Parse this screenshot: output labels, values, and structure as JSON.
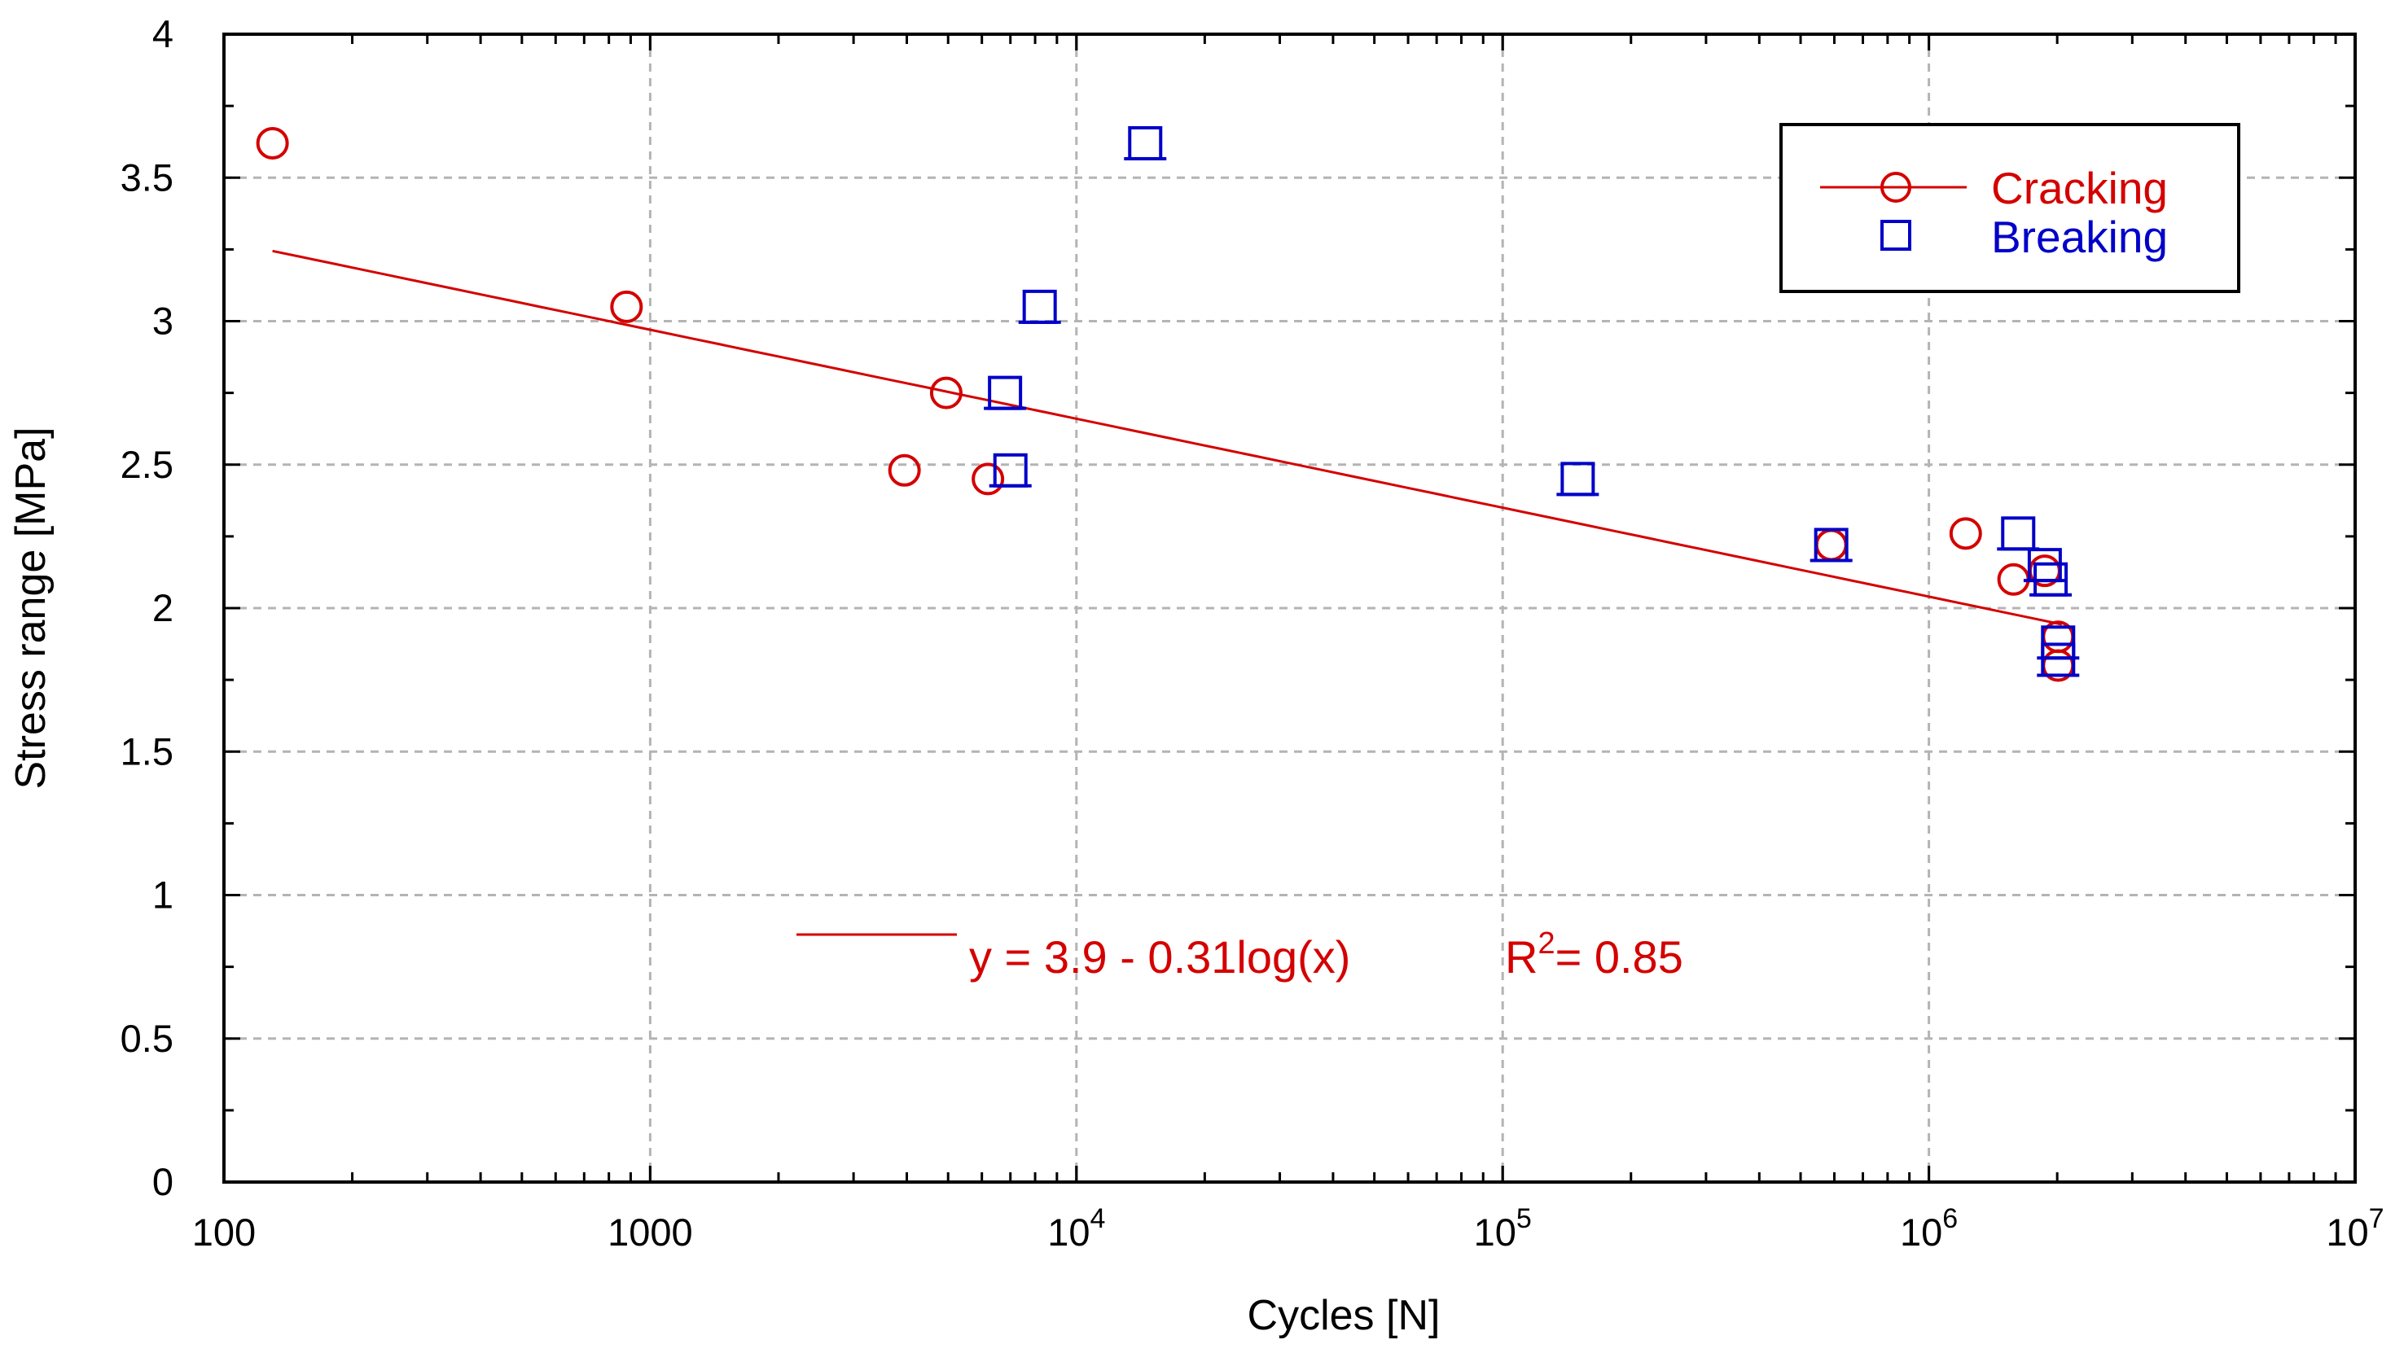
{
  "chart_data": {
    "type": "scatter",
    "title": "",
    "xlabel": "Cycles [N]",
    "ylabel": "Stress range [MPa]",
    "xscale": "log",
    "xlim": [
      100,
      10000000
    ],
    "ylim": [
      0,
      4
    ],
    "grid": true,
    "x_tick_labels": [
      {
        "value": 100,
        "base": "100",
        "exp": ""
      },
      {
        "value": 1000,
        "base": "1000",
        "exp": ""
      },
      {
        "value": 10000,
        "base": "10",
        "exp": "4"
      },
      {
        "value": 100000,
        "base": "10",
        "exp": "5"
      },
      {
        "value": 1000000,
        "base": "10",
        "exp": "6"
      },
      {
        "value": 10000000,
        "base": "10",
        "exp": "7"
      }
    ],
    "y_ticks": [
      0,
      0.5,
      1,
      1.5,
      2,
      2.5,
      3,
      3.5,
      4
    ],
    "y_tick_labels": [
      "0",
      "0.5",
      "1",
      "1.5",
      "2",
      "2.5",
      "3",
      "3.5",
      "4"
    ],
    "legend_position": "top-right",
    "series": [
      {
        "name": "Cracking",
        "marker": "circle",
        "color": "#d40000",
        "points": [
          [
            130,
            3.62
          ],
          [
            880,
            3.05
          ],
          [
            3950,
            2.48
          ],
          [
            4950,
            2.75
          ],
          [
            6200,
            2.45
          ],
          [
            590000,
            2.22
          ],
          [
            1220000,
            2.26
          ],
          [
            1580000,
            2.1
          ],
          [
            1870000,
            2.13
          ],
          [
            2010000,
            1.9
          ],
          [
            2010000,
            1.8
          ]
        ]
      },
      {
        "name": "Breaking",
        "marker": "square",
        "color": "#0000c8",
        "points": [
          [
            14500,
            3.62
          ],
          [
            8200,
            3.05
          ],
          [
            6800,
            2.75
          ],
          [
            7000,
            2.48
          ],
          [
            150000,
            2.45
          ],
          [
            590000,
            2.22
          ],
          [
            1620000,
            2.26
          ],
          [
            1870000,
            2.15
          ],
          [
            1930000,
            2.1
          ],
          [
            2010000,
            1.88
          ],
          [
            2010000,
            1.82
          ]
        ]
      }
    ],
    "fit": {
      "name": "fit",
      "color": "#d40000",
      "intercept": 3.9,
      "slope": -0.31,
      "x_range": [
        130,
        2050000
      ],
      "equation": "y = 3.9 - 0.31log(x)",
      "r2_prefix": "R",
      "r2_sup": "2",
      "r2_value": "= 0.85"
    }
  }
}
